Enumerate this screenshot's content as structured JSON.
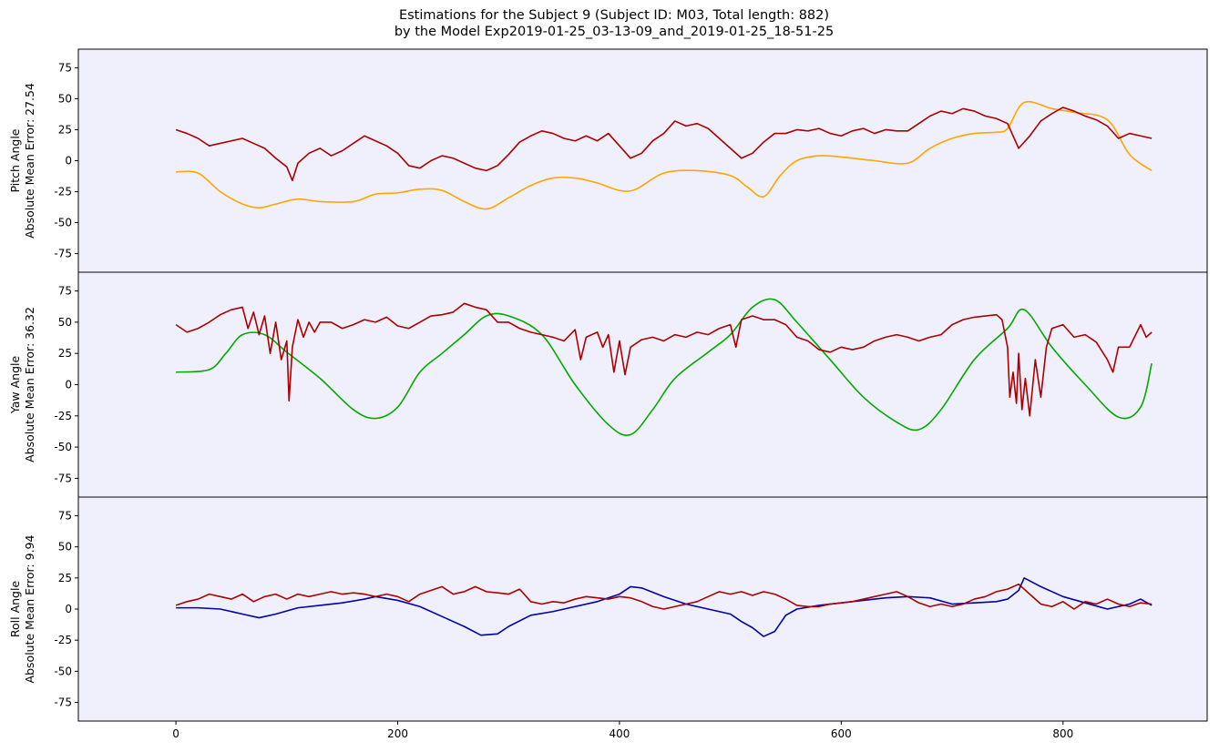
{
  "figure": {
    "title_line1": "Estimations for the Subject 9 (Subject ID: M03, Total length: 882)",
    "title_line2": "by the Model Exp2019-01-25_03-13-09_and_2019-01-25_18-51-25",
    "background": "#ffffff",
    "panel_background": "#f0f0fc"
  },
  "chart_data": [
    {
      "type": "line",
      "ylabel_line1": "Pitch Angle",
      "ylabel_line2": "Absolute Mean Error: 27.54",
      "xlim": [
        -88,
        930
      ],
      "ylim": [
        -90,
        90
      ],
      "yticks": [
        -75,
        -50,
        -25,
        0,
        25,
        50,
        75
      ],
      "xticks": [],
      "series": [
        {
          "color": "#ffa500",
          "smooth": true,
          "x": [
            0,
            20,
            40,
            60,
            75,
            90,
            110,
            130,
            160,
            180,
            200,
            220,
            240,
            260,
            280,
            300,
            320,
            340,
            360,
            380,
            400,
            415,
            440,
            470,
            500,
            515,
            530,
            545,
            560,
            580,
            600,
            630,
            660,
            680,
            700,
            720,
            740,
            750,
            765,
            790,
            810,
            840,
            860,
            880
          ],
          "y": [
            -9,
            -10,
            -25,
            -35,
            -38,
            -35,
            -31,
            -33,
            -33,
            -27,
            -26,
            -23,
            -24,
            -33,
            -39,
            -30,
            -20,
            -14,
            -14,
            -18,
            -24,
            -23,
            -10,
            -8,
            -12,
            -21,
            -29,
            -12,
            0,
            4,
            3,
            0,
            -2,
            10,
            18,
            22,
            23,
            26,
            47,
            42,
            39,
            33,
            5,
            -8
          ]
        },
        {
          "color": "#aa0000",
          "smooth": false,
          "x": [
            0,
            10,
            20,
            30,
            40,
            50,
            60,
            70,
            80,
            90,
            100,
            105,
            110,
            120,
            130,
            140,
            150,
            160,
            170,
            180,
            190,
            200,
            210,
            220,
            230,
            240,
            250,
            260,
            270,
            280,
            290,
            300,
            310,
            320,
            330,
            340,
            350,
            360,
            370,
            380,
            390,
            400,
            410,
            420,
            430,
            440,
            450,
            460,
            470,
            480,
            490,
            500,
            510,
            520,
            530,
            540,
            550,
            560,
            570,
            580,
            590,
            600,
            610,
            620,
            630,
            640,
            650,
            660,
            670,
            680,
            690,
            700,
            710,
            720,
            730,
            740,
            750,
            760,
            770,
            780,
            790,
            800,
            810,
            820,
            830,
            840,
            850,
            860,
            870,
            880
          ],
          "y": [
            25,
            22,
            18,
            12,
            14,
            16,
            18,
            14,
            10,
            2,
            -5,
            -16,
            -2,
            6,
            10,
            4,
            8,
            14,
            20,
            16,
            12,
            6,
            -4,
            -6,
            0,
            4,
            2,
            -2,
            -6,
            -8,
            -4,
            5,
            15,
            20,
            24,
            22,
            18,
            16,
            20,
            16,
            22,
            12,
            2,
            6,
            16,
            22,
            32,
            28,
            30,
            26,
            18,
            10,
            2,
            6,
            15,
            22,
            22,
            25,
            24,
            26,
            22,
            20,
            24,
            26,
            22,
            25,
            24,
            24,
            30,
            36,
            40,
            38,
            42,
            40,
            36,
            34,
            30,
            10,
            20,
            32,
            38,
            43,
            40,
            36,
            33,
            28,
            18,
            22,
            20,
            18
          ]
        }
      ]
    },
    {
      "type": "line",
      "ylabel_line1": "Yaw Angle",
      "ylabel_line2": "Absolute Mean Error: 36.32",
      "xlim": [
        -88,
        930
      ],
      "ylim": [
        -90,
        90
      ],
      "yticks": [
        -75,
        -50,
        -25,
        0,
        25,
        50,
        75
      ],
      "xticks": [],
      "series": [
        {
          "color": "#00aa00",
          "smooth": true,
          "x": [
            0,
            30,
            45,
            60,
            80,
            100,
            130,
            160,
            180,
            200,
            220,
            240,
            260,
            280,
            300,
            330,
            360,
            390,
            410,
            430,
            450,
            480,
            500,
            520,
            540,
            560,
            590,
            620,
            650,
            670,
            690,
            720,
            750,
            765,
            790,
            820,
            850,
            870,
            880
          ],
          "y": [
            10,
            12,
            25,
            40,
            40,
            26,
            5,
            -20,
            -27,
            -18,
            10,
            25,
            40,
            55,
            55,
            40,
            0,
            -32,
            -40,
            -20,
            5,
            26,
            40,
            62,
            68,
            50,
            20,
            -10,
            -30,
            -36,
            -20,
            20,
            45,
            60,
            30,
            0,
            -26,
            -18,
            17
          ]
        },
        {
          "color": "#aa0000",
          "smooth": false,
          "x": [
            0,
            10,
            20,
            30,
            40,
            50,
            60,
            65,
            70,
            75,
            80,
            85,
            90,
            95,
            100,
            102,
            105,
            110,
            115,
            120,
            125,
            130,
            140,
            150,
            160,
            170,
            180,
            190,
            200,
            210,
            220,
            230,
            240,
            250,
            260,
            270,
            280,
            290,
            300,
            310,
            320,
            330,
            340,
            350,
            360,
            365,
            370,
            380,
            385,
            390,
            395,
            400,
            405,
            410,
            420,
            430,
            440,
            450,
            460,
            470,
            480,
            490,
            500,
            505,
            510,
            520,
            530,
            540,
            550,
            560,
            570,
            580,
            590,
            600,
            610,
            620,
            630,
            640,
            650,
            660,
            670,
            680,
            690,
            700,
            710,
            720,
            730,
            740,
            745,
            750,
            752,
            755,
            758,
            760,
            763,
            766,
            770,
            775,
            780,
            785,
            790,
            800,
            810,
            820,
            830,
            840,
            845,
            850,
            860,
            870,
            875,
            880
          ],
          "y": [
            48,
            42,
            45,
            50,
            56,
            60,
            62,
            45,
            58,
            40,
            55,
            25,
            50,
            20,
            35,
            -13,
            30,
            52,
            38,
            50,
            42,
            50,
            50,
            45,
            48,
            52,
            50,
            54,
            47,
            45,
            50,
            55,
            56,
            58,
            65,
            62,
            60,
            50,
            50,
            45,
            42,
            40,
            38,
            35,
            44,
            20,
            38,
            42,
            30,
            40,
            10,
            35,
            8,
            30,
            36,
            38,
            35,
            40,
            38,
            42,
            40,
            45,
            48,
            30,
            52,
            55,
            52,
            52,
            48,
            38,
            35,
            28,
            26,
            30,
            28,
            30,
            35,
            38,
            40,
            38,
            35,
            38,
            40,
            48,
            52,
            54,
            55,
            56,
            52,
            30,
            -10,
            10,
            -15,
            25,
            -20,
            5,
            -25,
            20,
            -10,
            30,
            45,
            48,
            38,
            40,
            34,
            20,
            10,
            30,
            30,
            48,
            38,
            42
          ]
        }
      ]
    },
    {
      "type": "line",
      "ylabel_line1": "Roll Angle",
      "ylabel_line2": "Absolute Mean Error: 9.94",
      "xlim": [
        -88,
        930
      ],
      "ylim": [
        -90,
        90
      ],
      "yticks": [
        -75,
        -50,
        -25,
        0,
        25,
        50,
        75
      ],
      "xticks": [
        0,
        200,
        400,
        600,
        800
      ],
      "series": [
        {
          "color": "#0000aa",
          "smooth": false,
          "x": [
            0,
            20,
            40,
            60,
            75,
            90,
            110,
            130,
            150,
            170,
            180,
            200,
            220,
            240,
            260,
            275,
            290,
            300,
            320,
            340,
            360,
            380,
            400,
            410,
            420,
            440,
            460,
            480,
            500,
            510,
            520,
            530,
            540,
            550,
            560,
            580,
            600,
            620,
            640,
            660,
            680,
            700,
            720,
            740,
            750,
            760,
            765,
            780,
            800,
            820,
            840,
            860,
            870,
            880
          ],
          "y": [
            1,
            1,
            0,
            -4,
            -7,
            -4,
            1,
            3,
            5,
            8,
            10,
            7,
            2,
            -6,
            -14,
            -21,
            -20,
            -14,
            -5,
            -2,
            2,
            6,
            12,
            18,
            17,
            10,
            4,
            0,
            -4,
            -10,
            -15,
            -22,
            -18,
            -5,
            0,
            3,
            5,
            7,
            9,
            10,
            9,
            4,
            5,
            6,
            8,
            15,
            25,
            18,
            10,
            5,
            0,
            4,
            8,
            3
          ]
        },
        {
          "color": "#aa0000",
          "smooth": false,
          "x": [
            0,
            10,
            20,
            30,
            40,
            50,
            60,
            70,
            80,
            90,
            100,
            110,
            120,
            130,
            140,
            150,
            160,
            170,
            180,
            190,
            200,
            210,
            220,
            230,
            240,
            250,
            260,
            270,
            280,
            290,
            300,
            310,
            320,
            330,
            340,
            350,
            360,
            370,
            380,
            390,
            400,
            410,
            420,
            430,
            440,
            450,
            460,
            470,
            480,
            490,
            500,
            510,
            520,
            530,
            540,
            550,
            560,
            570,
            580,
            590,
            600,
            610,
            620,
            630,
            640,
            650,
            660,
            670,
            680,
            690,
            700,
            710,
            720,
            730,
            740,
            750,
            760,
            770,
            780,
            790,
            800,
            810,
            820,
            830,
            840,
            850,
            860,
            870,
            880
          ],
          "y": [
            3,
            6,
            8,
            12,
            10,
            8,
            12,
            6,
            10,
            12,
            8,
            12,
            10,
            12,
            14,
            12,
            13,
            12,
            10,
            12,
            10,
            6,
            12,
            15,
            18,
            12,
            14,
            18,
            14,
            13,
            12,
            16,
            6,
            4,
            6,
            5,
            8,
            10,
            9,
            8,
            10,
            9,
            6,
            2,
            0,
            2,
            4,
            6,
            10,
            14,
            12,
            14,
            11,
            14,
            12,
            8,
            3,
            2,
            2,
            4,
            5,
            6,
            8,
            10,
            12,
            14,
            10,
            5,
            2,
            4,
            2,
            4,
            8,
            10,
            14,
            16,
            20,
            12,
            4,
            2,
            6,
            0,
            6,
            4,
            8,
            4,
            2,
            5,
            4
          ]
        }
      ]
    }
  ]
}
